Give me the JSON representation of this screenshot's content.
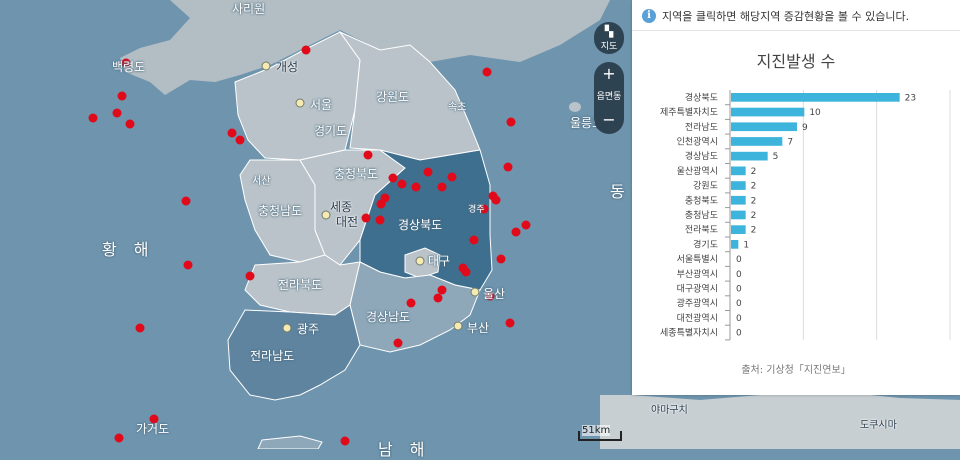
{
  "map": {
    "labels": {
      "sariwon": "사리원",
      "kaesong": "개성",
      "baengnyeong": "백령도",
      "seoul": "서울",
      "gyeonggi": "경기도",
      "gangwon": "강원도",
      "chungbuk": "충청북도",
      "chungnam": "충청남도",
      "sejong": "세종",
      "daejeon": "대전",
      "gyeongbuk": "경상북도",
      "daegu": "대구",
      "jeonbuk": "전라북도",
      "gyeongnam": "경상남도",
      "ulsan": "울산",
      "busan": "부산",
      "gwangju": "광주",
      "jeonnam": "전라남도",
      "ulleung": "울릉도",
      "yellow_sea": "황 해",
      "east_sea": "동",
      "south_sea": "남 해",
      "gageo": "가거도",
      "yamaguchi": "야마구치",
      "dokushima": "도쿠시마",
      "seosan": "서산",
      "gyeongju": "경주",
      "sokcho": "속초"
    },
    "controls": {
      "map_type": "지도",
      "zoom_in": "+",
      "zoom_level": "읍면동",
      "zoom_out": "−"
    },
    "scale": "51km",
    "colors": {
      "sea": "#6f95ae",
      "land": "#b9c3c9",
      "highlight_dark": "#3f6f8e",
      "highlight_mid": "#6f8fa6",
      "quake_dot": "#e00a1a"
    },
    "quake_count_visible": 44
  },
  "panel": {
    "info_icon": "info-icon",
    "info_text": "지역을 클릭하면 해당지역 증감현황을 볼 수 있습니다.",
    "chart_title": "지진발생 수",
    "source": "출처: 기상청「지진연보」"
  },
  "chart_data": {
    "type": "bar",
    "orientation": "horizontal",
    "title": "지진발생 수",
    "categories": [
      "경상북도",
      "제주특별자치도",
      "전라남도",
      "인천광역시",
      "경상남도",
      "울산광역시",
      "강원도",
      "충청북도",
      "충청남도",
      "전라북도",
      "경기도",
      "서울특별시",
      "부산광역시",
      "대구광역시",
      "광주광역시",
      "대전광역시",
      "세종특별자치시"
    ],
    "values": [
      23,
      10,
      9,
      7,
      5,
      2,
      2,
      2,
      2,
      2,
      1,
      0,
      0,
      0,
      0,
      0,
      0
    ],
    "xlim": [
      0,
      30
    ],
    "grid": true,
    "bar_color": "#3cb4dc"
  }
}
